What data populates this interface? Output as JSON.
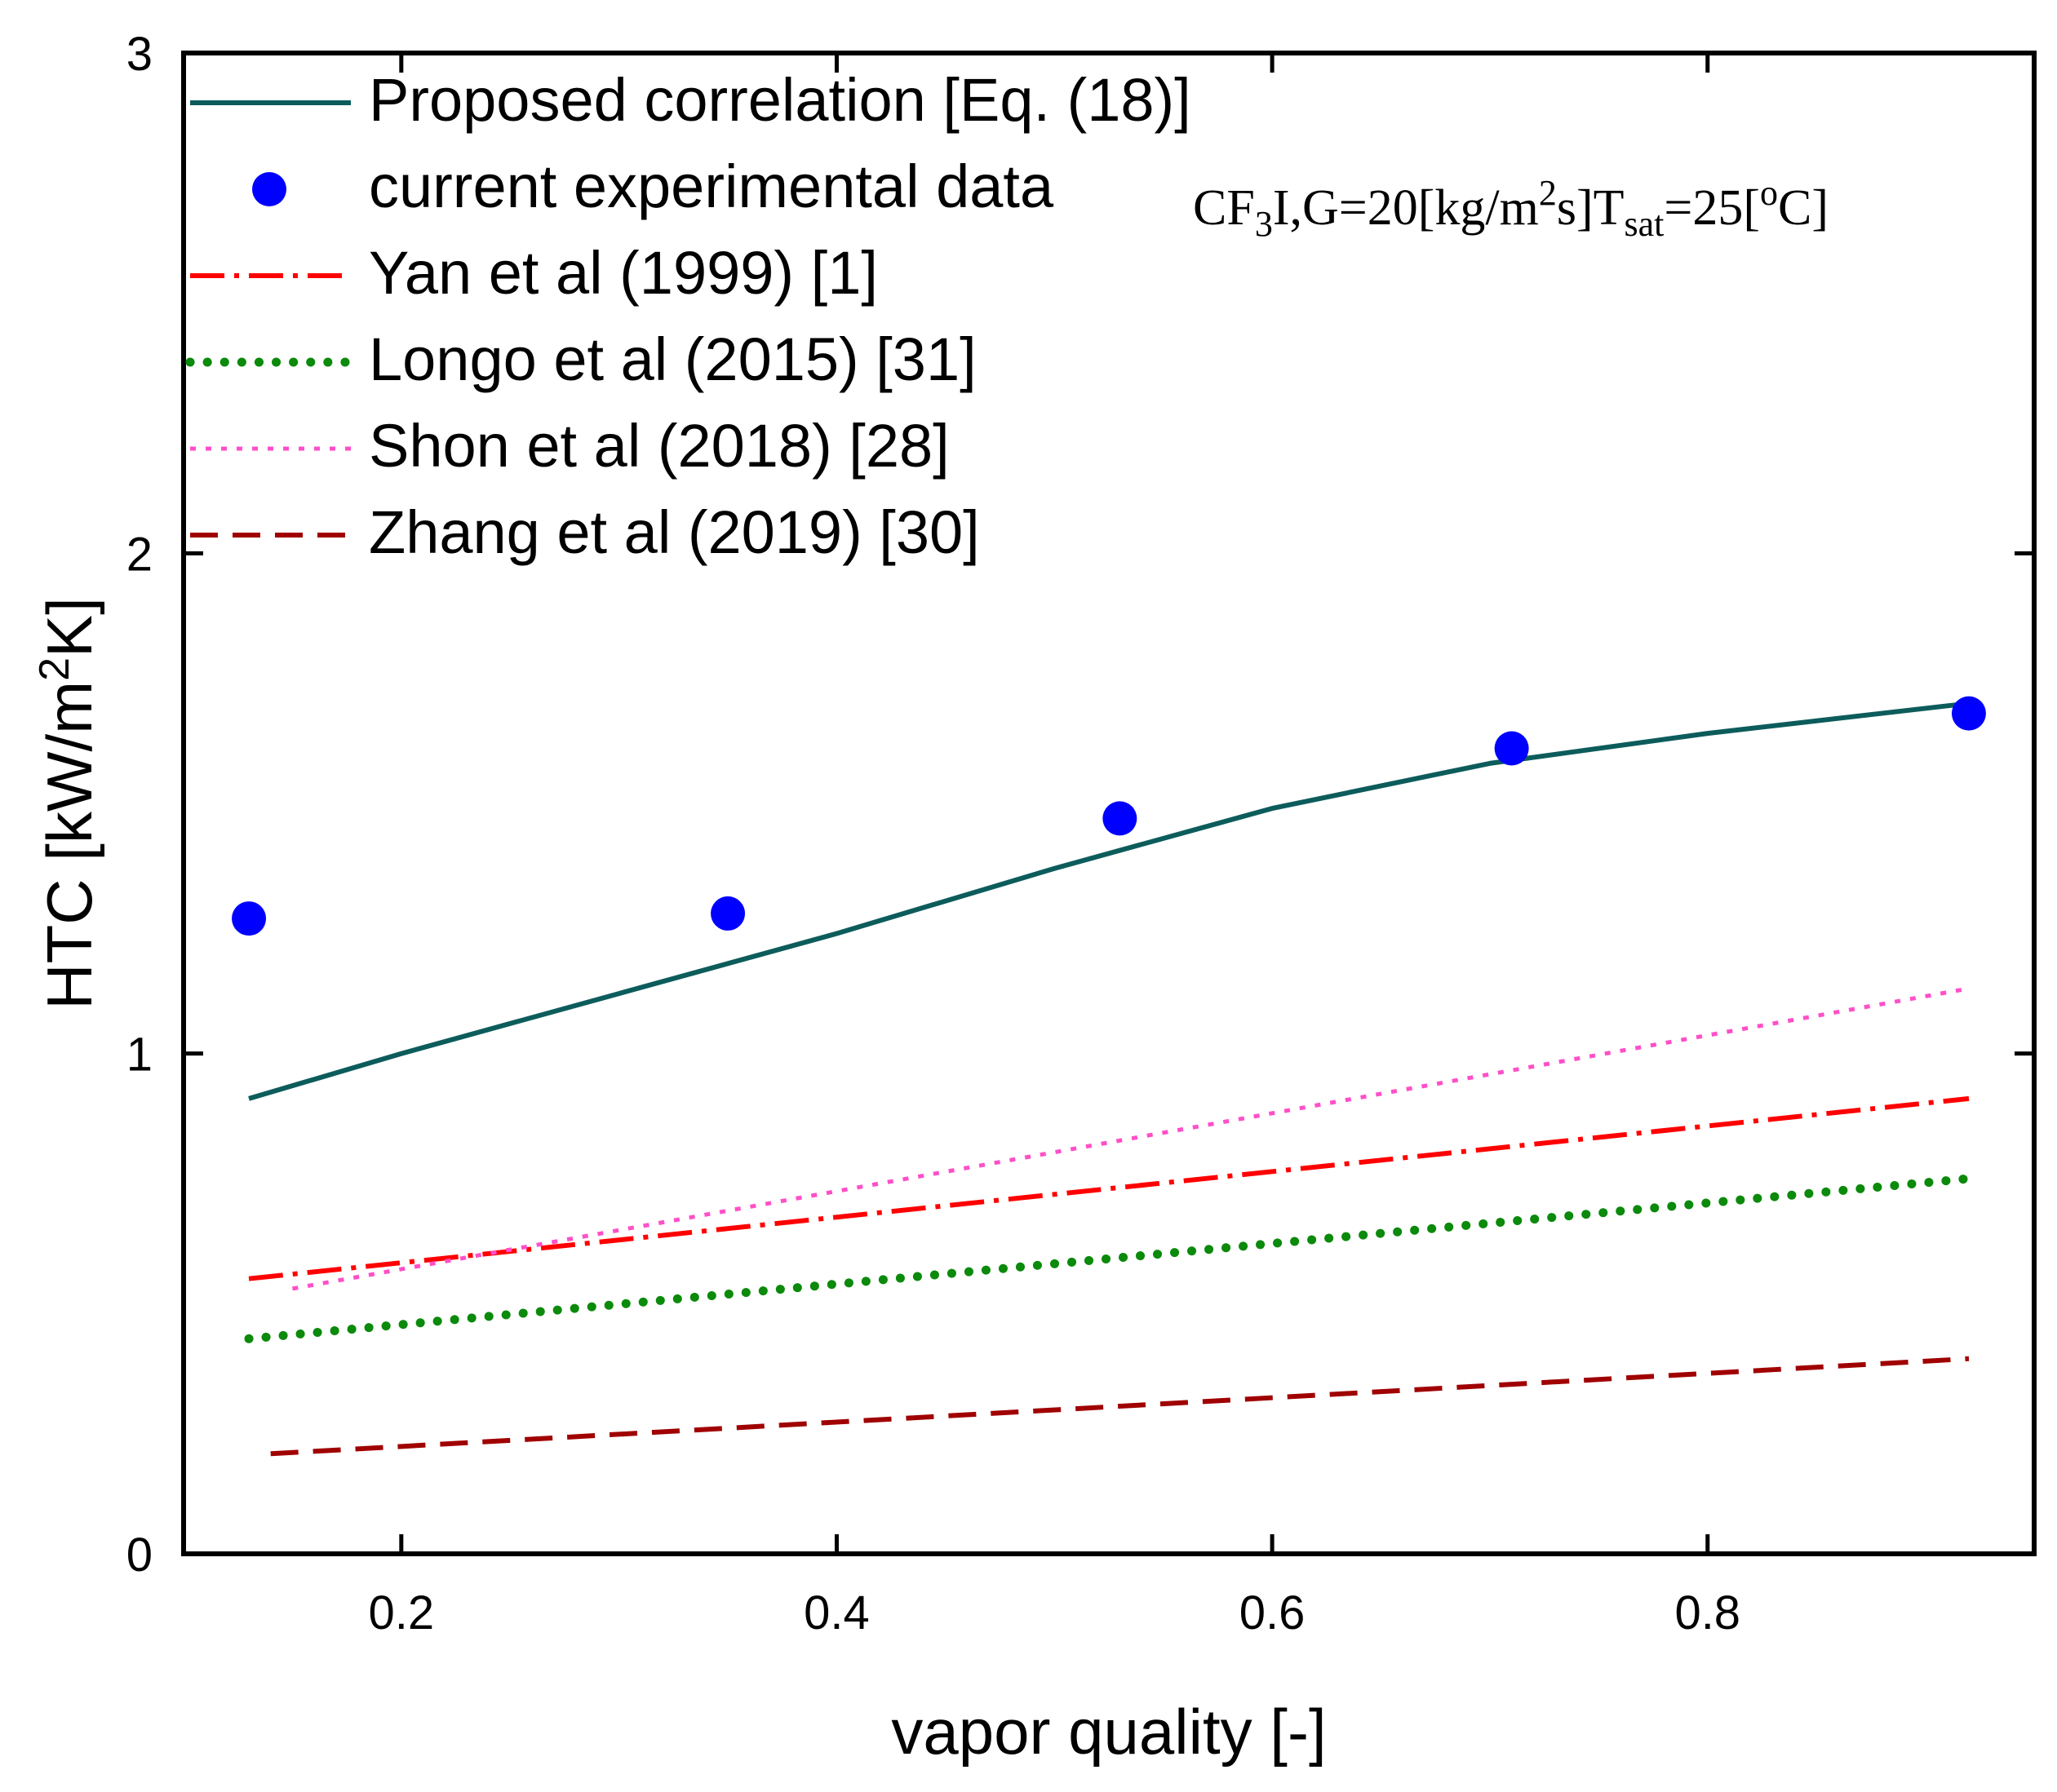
{
  "chart_data": {
    "type": "line",
    "title": "",
    "xlabel": "vapor quality [-]",
    "ylabel": {
      "main": "HTC [kW/m",
      "sup": "2",
      "end": "K]"
    },
    "xlim": [
      0.1,
      0.95
    ],
    "ylim": [
      0,
      3
    ],
    "xticks": [
      0.2,
      0.4,
      0.6,
      0.8
    ],
    "xtick_labels": [
      "0.2",
      "0.4",
      "0.6",
      "0.8"
    ],
    "yticks": [
      0,
      1,
      2,
      3
    ],
    "ytick_labels": [
      "0",
      "1",
      "2",
      "3"
    ],
    "grid": false,
    "legend_position": "top-left",
    "annotation": {
      "parts": [
        {
          "t": "CF",
          "s": "n"
        },
        {
          "t": "3",
          "s": "sub"
        },
        {
          "t": "I,G=20[kg/m",
          "s": "n"
        },
        {
          "t": "2",
          "s": "sup"
        },
        {
          "t": "s]T",
          "s": "n"
        },
        {
          "t": "sat",
          "s": "sub"
        },
        {
          "t": "=25[",
          "s": "n"
        },
        {
          "t": "o",
          "s": "sup"
        },
        {
          "t": "C]",
          "s": "n"
        }
      ]
    },
    "series": [
      {
        "name": "Proposed correlation [Eq. (18)]",
        "kind": "line",
        "style": "solid",
        "color": "#0d5c5c",
        "x": [
          0.13,
          0.2,
          0.3,
          0.4,
          0.5,
          0.6,
          0.7,
          0.8,
          0.92
        ],
        "y": [
          0.91,
          1.0,
          1.12,
          1.24,
          1.37,
          1.49,
          1.58,
          1.64,
          1.7
        ]
      },
      {
        "name": "current experimental data",
        "kind": "scatter",
        "style": "marker",
        "color": "#0000ff",
        "x": [
          0.13,
          0.35,
          0.53,
          0.71,
          0.92
        ],
        "y": [
          1.27,
          1.28,
          1.47,
          1.61,
          1.68
        ]
      },
      {
        "name": "Yan et al (1999) [1]",
        "kind": "line",
        "style": "dashdot",
        "color": "#ff0000",
        "x": [
          0.13,
          0.92
        ],
        "y": [
          0.55,
          0.91
        ]
      },
      {
        "name": "Longo et al (2015) [31]",
        "kind": "line",
        "style": "dotted-thick",
        "color": "#0b8a0b",
        "x": [
          0.13,
          0.92
        ],
        "y": [
          0.43,
          0.75
        ]
      },
      {
        "name": "Shon et al (2018) [28]",
        "kind": "line",
        "style": "dotted-thin",
        "color": "#ff4fc8",
        "x": [
          0.15,
          0.92
        ],
        "y": [
          0.53,
          1.13
        ]
      },
      {
        "name": "Zhang et al (2019) [30]",
        "kind": "line",
        "style": "dashed",
        "color": "#a00000",
        "x": [
          0.14,
          0.92
        ],
        "y": [
          0.2,
          0.39
        ]
      }
    ]
  }
}
